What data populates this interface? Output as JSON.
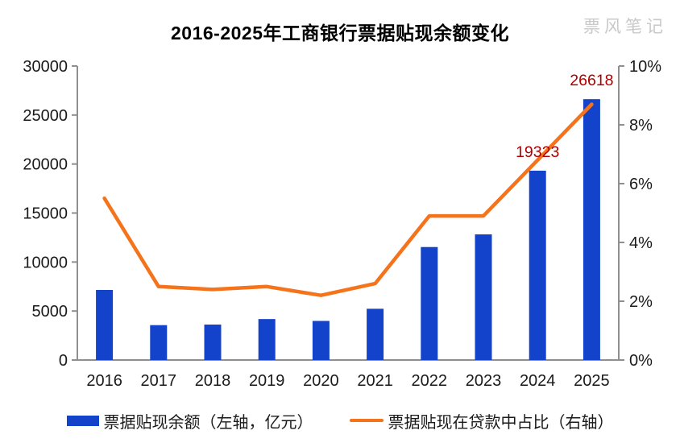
{
  "header": {
    "title": "2016-2025年工商银行票据贴现余额变化",
    "watermark": "票风笔记"
  },
  "chart_data": {
    "type": "combo-bar-line",
    "categories": [
      "2016",
      "2017",
      "2018",
      "2019",
      "2020",
      "2021",
      "2022",
      "2023",
      "2024",
      "2025"
    ],
    "series": [
      {
        "name": "票据贴现余额（左轴，亿元）",
        "type": "bar",
        "axis": "left",
        "color": "#1443cb",
        "values": [
          7150,
          3560,
          3620,
          4180,
          3990,
          5230,
          11530,
          12820,
          19323,
          26618
        ]
      },
      {
        "name": "票据贴现在贷款中占比（右轴）",
        "type": "line",
        "axis": "right",
        "color": "#f5731b",
        "values": [
          5.5,
          2.5,
          2.4,
          2.5,
          2.2,
          2.6,
          4.9,
          4.9,
          6.8,
          8.7
        ]
      }
    ],
    "left_axis": {
      "min": 0,
      "max": 30000,
      "tick_labels": [
        "0",
        "5000",
        "10000",
        "15000",
        "20000",
        "25000",
        "30000"
      ]
    },
    "right_axis": {
      "min": 0,
      "max": 10,
      "tick_labels": [
        "0%",
        "2%",
        "4%",
        "6%",
        "8%",
        "10%"
      ]
    },
    "annotations": [
      {
        "category": "2024",
        "text": "19323"
      },
      {
        "category": "2025",
        "text": "26618"
      }
    ],
    "legend_position": "bottom",
    "grid": false
  },
  "style": {
    "axis_color": "#8f8f8f",
    "tick_label_color": "#1a1a1a",
    "annotation_color": "#b00000",
    "background": "#ffffff"
  }
}
